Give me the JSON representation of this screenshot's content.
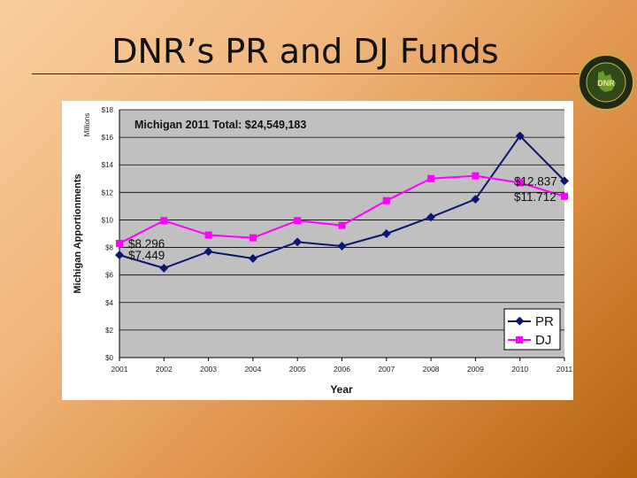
{
  "slide": {
    "title": "DNR’s PR and DJ Funds",
    "logo_text": "DNR"
  },
  "chart_data": {
    "type": "line",
    "annotation": "Michigan 2011 Total:  $24,549,183",
    "xlabel": "Year",
    "ylabel": "Michigan Apportionments",
    "yunit_label": "Millions",
    "x": [
      "2001",
      "2002",
      "2003",
      "2004",
      "2005",
      "2006",
      "2007",
      "2008",
      "2009",
      "2010",
      "2011"
    ],
    "ylim": [
      0,
      18
    ],
    "yticks": [
      0,
      2,
      4,
      6,
      8,
      10,
      12,
      14,
      16,
      18
    ],
    "ytick_labels": [
      "$0",
      "$2",
      "$4",
      "$6",
      "$8",
      "$10",
      "$12",
      "$14",
      "$16",
      "$18"
    ],
    "grid": true,
    "legend_position": "bottom-right",
    "series": [
      {
        "name": "PR",
        "color": "#0b1670",
        "marker": "diamond",
        "values": [
          7.449,
          6.5,
          7.7,
          7.2,
          8.4,
          8.1,
          9.0,
          10.2,
          11.5,
          16.1,
          12.837
        ]
      },
      {
        "name": "DJ",
        "color": "#ff00ff",
        "marker": "square",
        "values": [
          8.296,
          9.95,
          8.9,
          8.7,
          9.95,
          9.6,
          11.4,
          13.0,
          13.2,
          12.7,
          11.712
        ]
      }
    ],
    "data_labels": [
      {
        "text": "$8.296",
        "x": "2001",
        "y": 8.296
      },
      {
        "text": "$7.449",
        "x": "2001",
        "y": 7.449
      },
      {
        "text": "$12.837",
        "x": "2011",
        "y": 12.837
      },
      {
        "text": "$11.712",
        "x": "2011",
        "y": 11.712
      }
    ],
    "colors": {
      "plot_bg": "#c0c0c0",
      "grid": "#000000"
    }
  }
}
